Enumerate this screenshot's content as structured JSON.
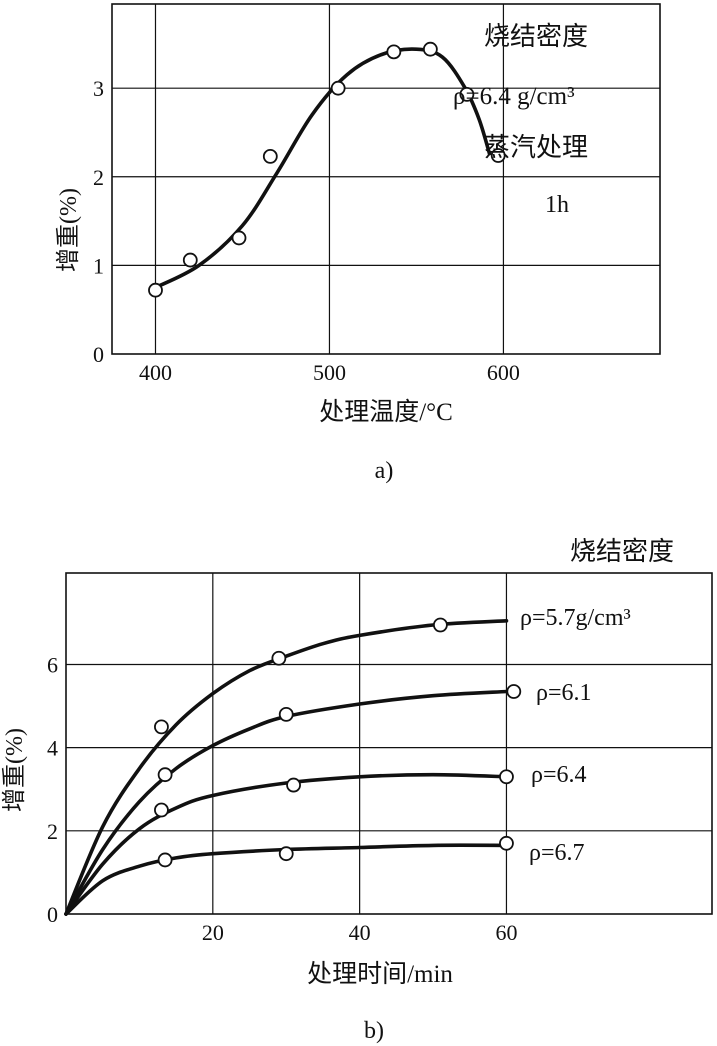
{
  "chart_data": [
    {
      "type": "scatter",
      "panel_label": "a)",
      "xlabel": "处理温度/°C",
      "ylabel": "增重(%)",
      "xlim": [
        375,
        690
      ],
      "ylim": [
        0,
        3.95
      ],
      "xticks": [
        400,
        500,
        600
      ],
      "yticks": [
        0,
        1,
        2,
        3
      ],
      "grid": true,
      "points": [
        {
          "x": 400,
          "y": 0.72
        },
        {
          "x": 420,
          "y": 1.06
        },
        {
          "x": 448,
          "y": 1.31
        },
        {
          "x": 466,
          "y": 2.23
        },
        {
          "x": 505,
          "y": 3.0
        },
        {
          "x": 537,
          "y": 3.41
        },
        {
          "x": 558,
          "y": 3.44
        },
        {
          "x": 579,
          "y": 2.93
        },
        {
          "x": 597,
          "y": 2.24
        }
      ],
      "curve": [
        {
          "x": 400,
          "y": 0.75
        },
        {
          "x": 425,
          "y": 1.0
        },
        {
          "x": 450,
          "y": 1.45
        },
        {
          "x": 470,
          "y": 2.05
        },
        {
          "x": 490,
          "y": 2.7
        },
        {
          "x": 510,
          "y": 3.15
        },
        {
          "x": 530,
          "y": 3.38
        },
        {
          "x": 550,
          "y": 3.44
        },
        {
          "x": 565,
          "y": 3.35
        },
        {
          "x": 578,
          "y": 3.0
        },
        {
          "x": 586,
          "y": 2.65
        },
        {
          "x": 592,
          "y": 2.26
        }
      ],
      "annotation": {
        "title": "烧结密度",
        "rho_label": "ρ=6.4 g/cm³",
        "treatment": "蒸汽处理",
        "duration": "1h"
      }
    },
    {
      "type": "line",
      "panel_label": "b)",
      "legend_title": "烧结密度",
      "xlabel": "处理时间/min",
      "ylabel": "增重(%)",
      "xlim": [
        0,
        88
      ],
      "ylim": [
        0,
        8.2
      ],
      "xticks": [
        20,
        40,
        60
      ],
      "yticks": [
        0,
        2,
        4,
        6
      ],
      "grid": true,
      "series": [
        {
          "name": "ρ=5.7g/cm³",
          "points": [
            {
              "x": 13,
              "y": 4.5
            },
            {
              "x": 29,
              "y": 6.15
            },
            {
              "x": 51,
              "y": 6.95
            }
          ],
          "curve": [
            {
              "x": 0,
              "y": 0
            },
            {
              "x": 5,
              "y": 2.1
            },
            {
              "x": 10,
              "y": 3.5
            },
            {
              "x": 15,
              "y": 4.55
            },
            {
              "x": 20,
              "y": 5.3
            },
            {
              "x": 25,
              "y": 5.85
            },
            {
              "x": 30,
              "y": 6.2
            },
            {
              "x": 35,
              "y": 6.5
            },
            {
              "x": 40,
              "y": 6.7
            },
            {
              "x": 50,
              "y": 6.95
            },
            {
              "x": 60,
              "y": 7.05
            }
          ]
        },
        {
          "name": "ρ=6.1",
          "points": [
            {
              "x": 13.5,
              "y": 3.35
            },
            {
              "x": 30,
              "y": 4.8
            },
            {
              "x": 61,
              "y": 5.35
            }
          ],
          "curve": [
            {
              "x": 0,
              "y": 0
            },
            {
              "x": 5,
              "y": 1.55
            },
            {
              "x": 10,
              "y": 2.7
            },
            {
              "x": 15,
              "y": 3.5
            },
            {
              "x": 20,
              "y": 4.05
            },
            {
              "x": 25,
              "y": 4.45
            },
            {
              "x": 30,
              "y": 4.75
            },
            {
              "x": 40,
              "y": 5.05
            },
            {
              "x": 50,
              "y": 5.25
            },
            {
              "x": 60,
              "y": 5.35
            }
          ]
        },
        {
          "name": "ρ=6.4",
          "points": [
            {
              "x": 13,
              "y": 2.5
            },
            {
              "x": 31,
              "y": 3.1
            },
            {
              "x": 60,
              "y": 3.3
            }
          ],
          "curve": [
            {
              "x": 0,
              "y": 0
            },
            {
              "x": 5,
              "y": 1.2
            },
            {
              "x": 10,
              "y": 2.05
            },
            {
              "x": 15,
              "y": 2.55
            },
            {
              "x": 20,
              "y": 2.85
            },
            {
              "x": 30,
              "y": 3.15
            },
            {
              "x": 40,
              "y": 3.3
            },
            {
              "x": 50,
              "y": 3.35
            },
            {
              "x": 60,
              "y": 3.3
            }
          ]
        },
        {
          "name": "ρ=6.7",
          "points": [
            {
              "x": 13.5,
              "y": 1.3
            },
            {
              "x": 30,
              "y": 1.45
            },
            {
              "x": 60,
              "y": 1.7
            }
          ],
          "curve": [
            {
              "x": 0,
              "y": 0
            },
            {
              "x": 5,
              "y": 0.8
            },
            {
              "x": 10,
              "y": 1.15
            },
            {
              "x": 15,
              "y": 1.35
            },
            {
              "x": 20,
              "y": 1.45
            },
            {
              "x": 30,
              "y": 1.55
            },
            {
              "x": 40,
              "y": 1.6
            },
            {
              "x": 50,
              "y": 1.65
            },
            {
              "x": 60,
              "y": 1.65
            }
          ]
        }
      ]
    }
  ]
}
